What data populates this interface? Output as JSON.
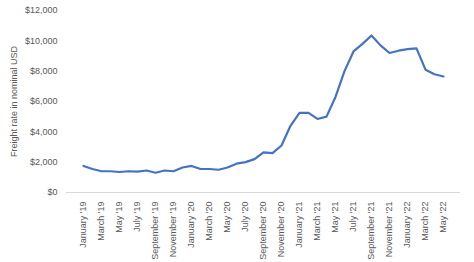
{
  "chart_data": {
    "type": "line",
    "y_label": "Freight rate in nominal USD",
    "categories": [
      "January '19",
      null,
      "March '19",
      null,
      "May '19",
      null,
      "July '19",
      null,
      "September '19",
      null,
      "November '19",
      null,
      "January '20",
      null,
      "March '20",
      null,
      "May '20",
      null,
      "July '20",
      null,
      "September '20",
      null,
      "November '20",
      null,
      "January '21",
      null,
      "March '21",
      null,
      "May '21",
      null,
      "July '21",
      null,
      "September '21",
      null,
      "November '21",
      null,
      "January '22",
      null,
      "March '22",
      null,
      "May '22"
    ],
    "values": [
      1750,
      1550,
      1400,
      1400,
      1350,
      1400,
      1380,
      1450,
      1300,
      1450,
      1400,
      1650,
      1750,
      1550,
      1550,
      1500,
      1650,
      1900,
      2000,
      2200,
      2650,
      2600,
      3100,
      4400,
      5250,
      5250,
      4850,
      5000,
      6300,
      8000,
      9300,
      9800,
      10350,
      9700,
      9200,
      9350,
      9450,
      9500,
      8100,
      7800,
      7650
    ],
    "color": "#4472c4",
    "ylim": [
      0,
      12000
    ],
    "yticks": [
      {
        "value": 0,
        "label": "$0"
      },
      {
        "value": 2000,
        "label": "$2,000"
      },
      {
        "value": 4000,
        "label": "$4,000"
      },
      {
        "value": 6000,
        "label": "$6,000"
      },
      {
        "value": 8000,
        "label": "$8,000"
      },
      {
        "value": 10000,
        "label": "$10,000"
      },
      {
        "value": 12000,
        "label": "$12,000"
      }
    ],
    "grid": false
  }
}
